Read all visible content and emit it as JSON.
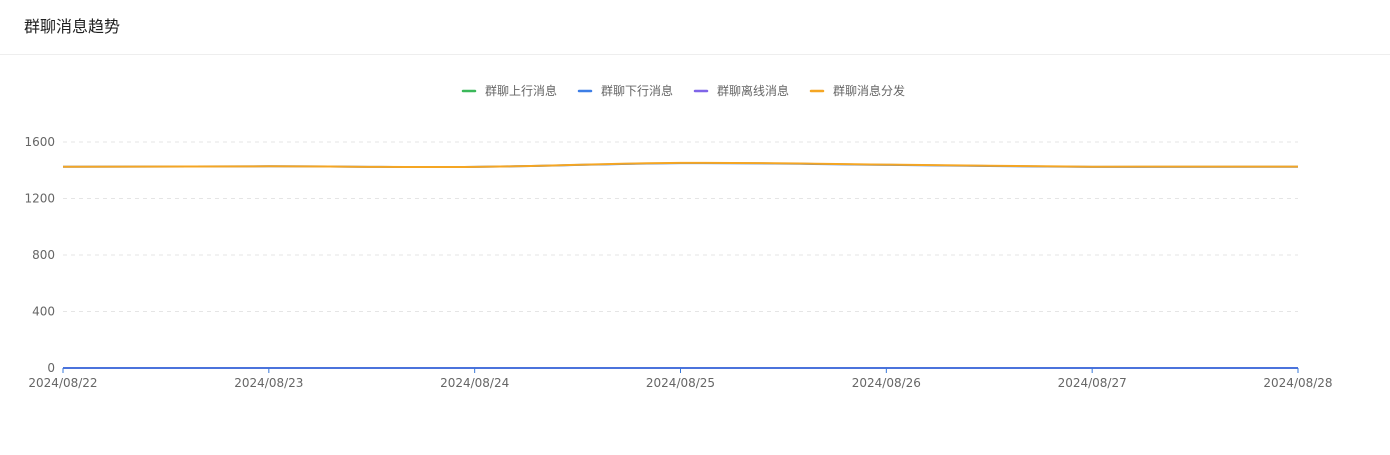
{
  "card": {
    "title": "群聊消息趋势"
  },
  "colors": {
    "grid": "#e5e5e5",
    "axis": "#3a78d8",
    "tick_text": "#666666",
    "legend_text": "#666666"
  },
  "chart_data": {
    "type": "line",
    "title": "",
    "xlabel": "",
    "ylabel": "",
    "categories": [
      "2024/08/22",
      "2024/08/23",
      "2024/08/24",
      "2024/08/25",
      "2024/08/26",
      "2024/08/27",
      "2024/08/28"
    ],
    "ylim": [
      0,
      1600
    ],
    "yticks": [
      0,
      400,
      800,
      1200,
      1600
    ],
    "grid": true,
    "legend_position": "top-center",
    "smooth": true,
    "series": [
      {
        "name": "群聊上行消息",
        "color": "#3bb85a",
        "values": [
          0,
          0,
          0,
          0,
          0,
          0,
          0
        ]
      },
      {
        "name": "群聊下行消息",
        "color": "#3d7ee6",
        "values": [
          1425,
          1428,
          1424,
          1450,
          1438,
          1424,
          1425
        ]
      },
      {
        "name": "群聊离线消息",
        "color": "#7f65e8",
        "values": [
          0,
          0,
          0,
          0,
          0,
          0,
          0
        ]
      },
      {
        "name": "群聊消息分发",
        "color": "#f5a623",
        "values": [
          1425,
          1428,
          1424,
          1452,
          1440,
          1425,
          1426
        ]
      }
    ]
  }
}
